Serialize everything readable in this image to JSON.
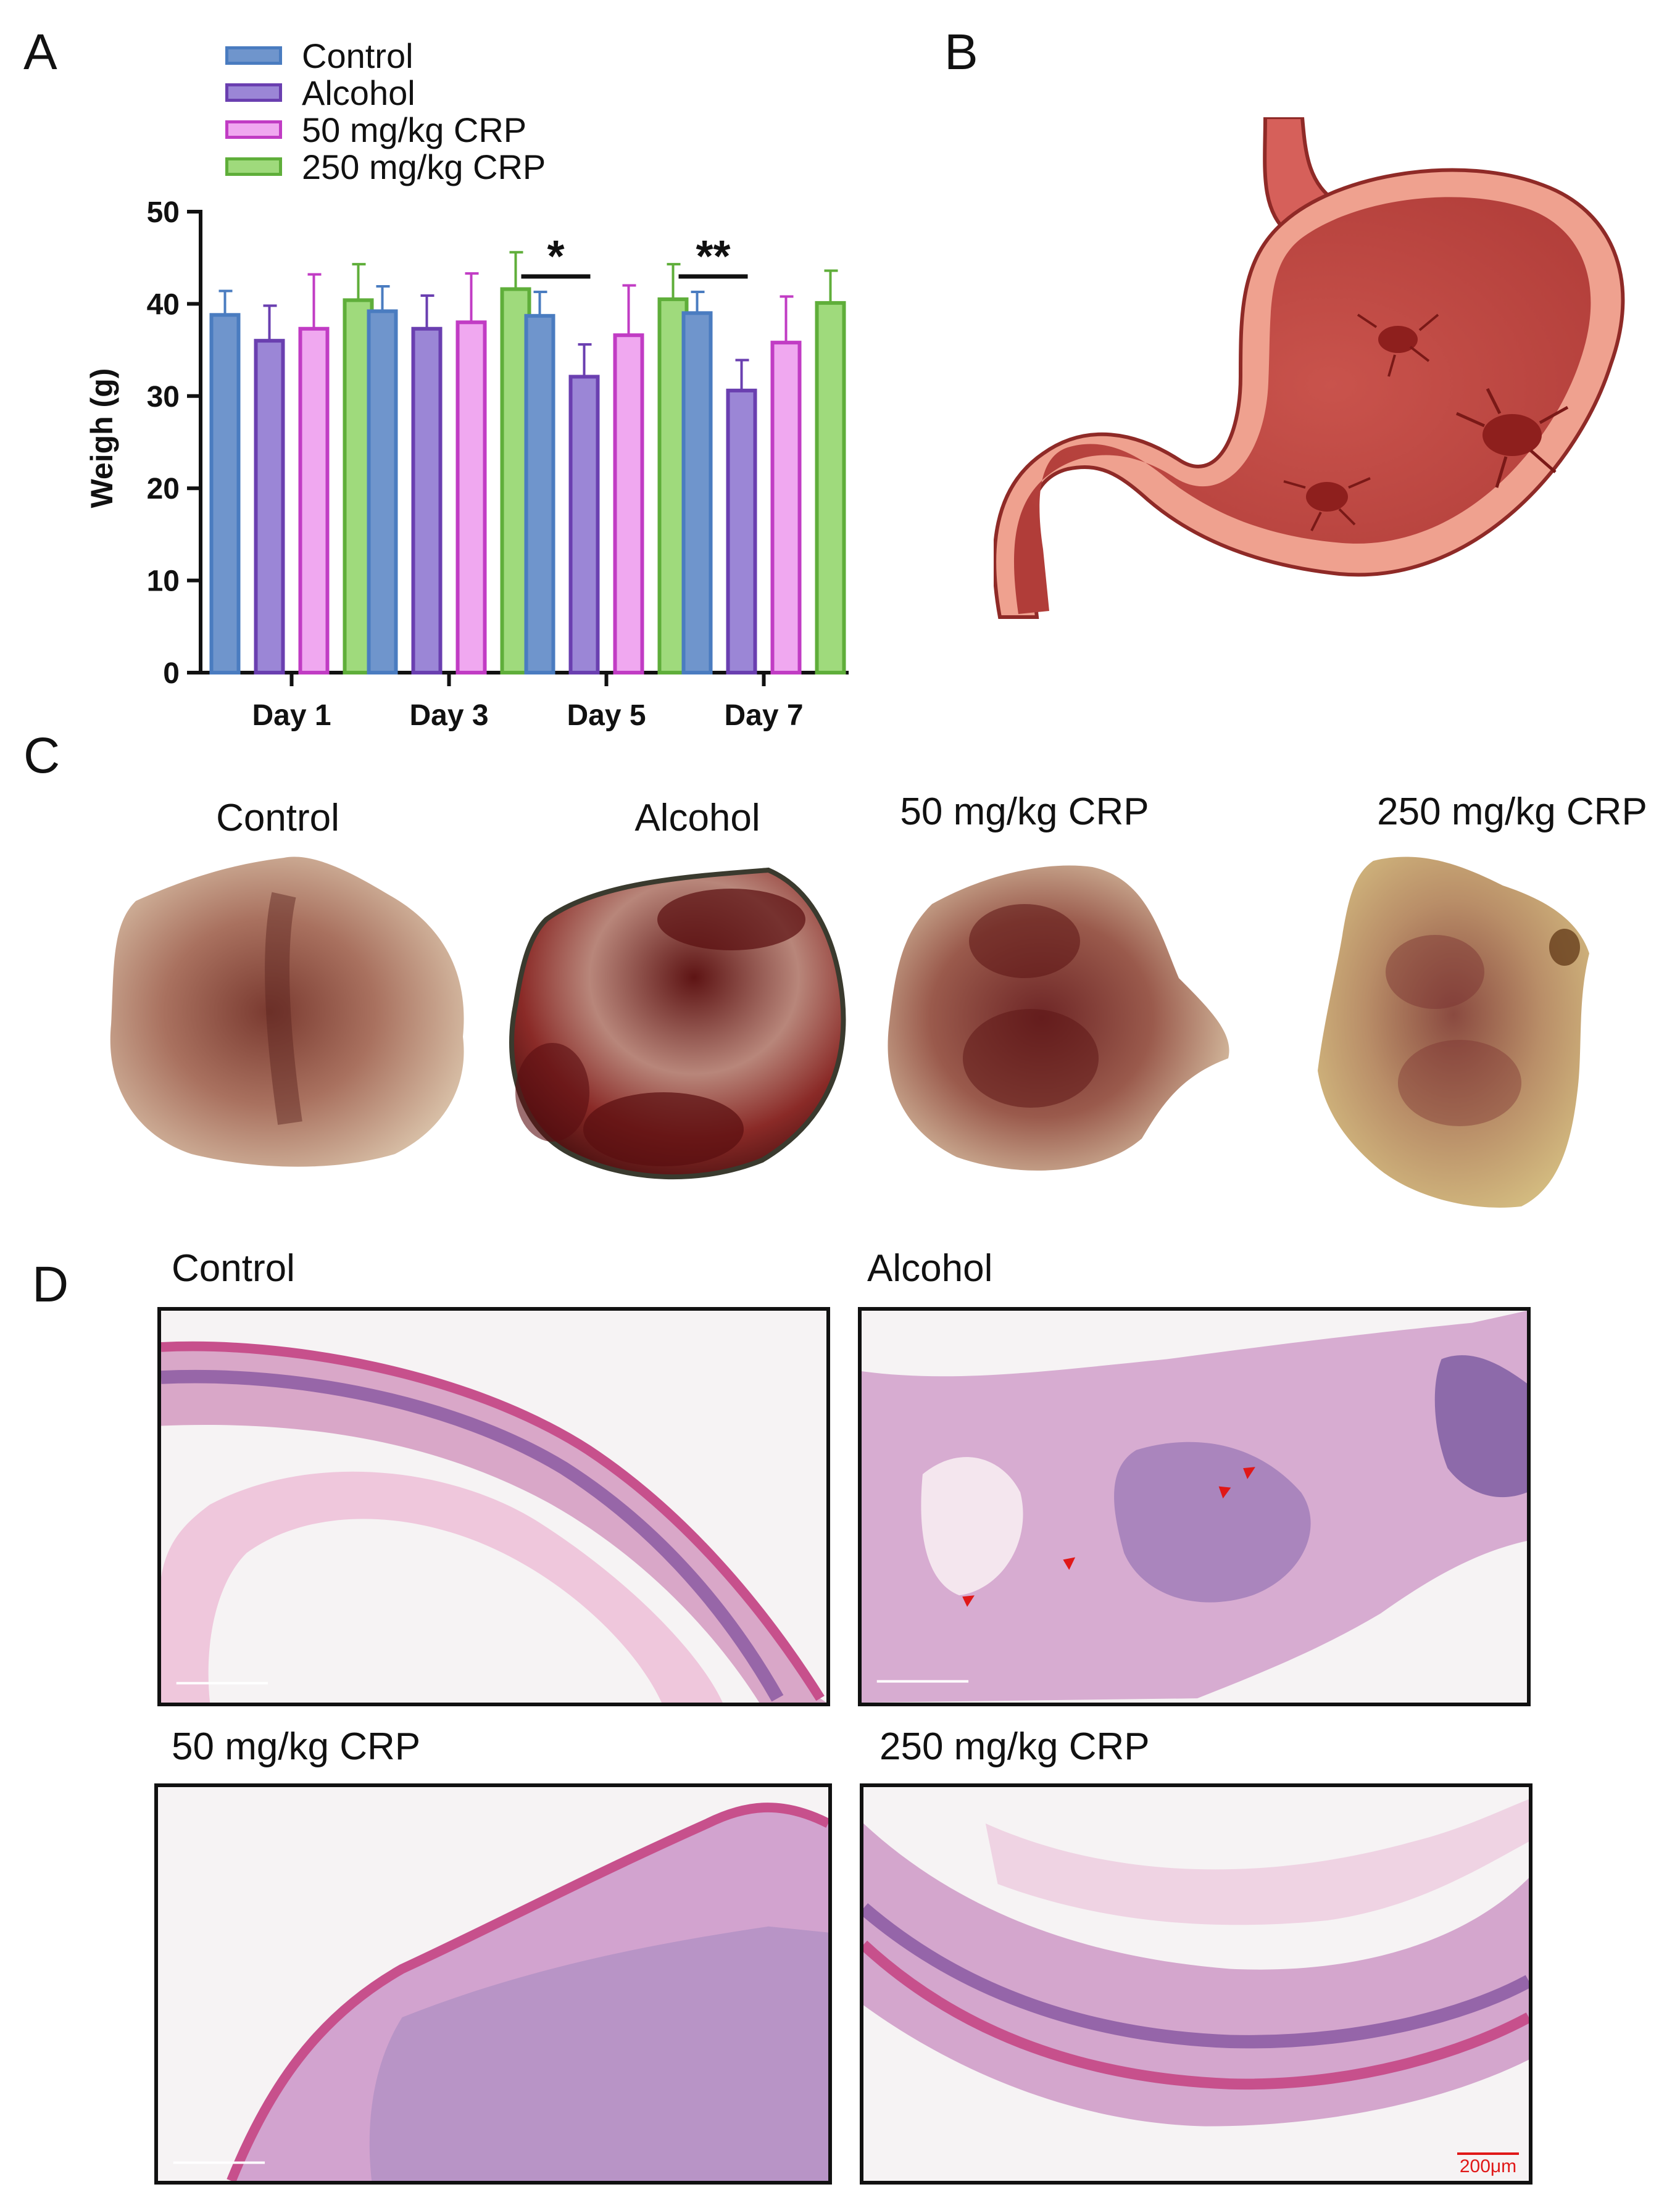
{
  "panels": {
    "a": "A",
    "b": "B",
    "c": "C",
    "d": "D"
  },
  "chart_data": {
    "type": "bar",
    "title": "",
    "xlabel": "",
    "ylabel": "Weigh (g)",
    "ylim": [
      0,
      50
    ],
    "yticks": [
      "0",
      "10",
      "20",
      "30",
      "40",
      "50"
    ],
    "categories": [
      "Day 1",
      "Day 3",
      "Day 5",
      "Day 7"
    ],
    "series": [
      {
        "name": "Control",
        "color": "#4a7cc0",
        "fill": "#6f95cc",
        "values": [
          38.8,
          39.2,
          38.7,
          39.0
        ],
        "errors": [
          2.6,
          2.7,
          2.6,
          2.3
        ]
      },
      {
        "name": "Alcohol",
        "color": "#6a3fb0",
        "fill": "#9b86d6",
        "values": [
          36.0,
          37.3,
          32.1,
          30.6
        ],
        "errors": [
          3.8,
          3.6,
          3.5,
          3.3
        ]
      },
      {
        "name": "50 mg/kg CRP",
        "color": "#c13cc4",
        "fill": "#f0a8f0",
        "values": [
          37.3,
          38.0,
          36.6,
          35.8
        ],
        "errors": [
          5.9,
          5.3,
          5.4,
          5.0
        ]
      },
      {
        "name": "250 mg/kg CRP",
        "color": "#5fae3a",
        "fill": "#9fda7c",
        "values": [
          40.4,
          41.6,
          40.5,
          40.1
        ],
        "errors": [
          3.9,
          4.0,
          3.8,
          3.5
        ]
      }
    ],
    "annotations": [
      {
        "category": "Day 5",
        "text": "*"
      },
      {
        "category": "Day 7",
        "text": "**"
      }
    ]
  },
  "photos": {
    "control": "Control",
    "alcohol": "Alcohol",
    "crp50": "50 mg/kg CRP",
    "crp250": "250 mg/kg CRP"
  },
  "histology": {
    "control": "Control",
    "alcohol": "Alcohol",
    "crp50": "50 mg/kg CRP",
    "crp250": "250 mg/kg CRP",
    "scale_bar": "200μm"
  }
}
